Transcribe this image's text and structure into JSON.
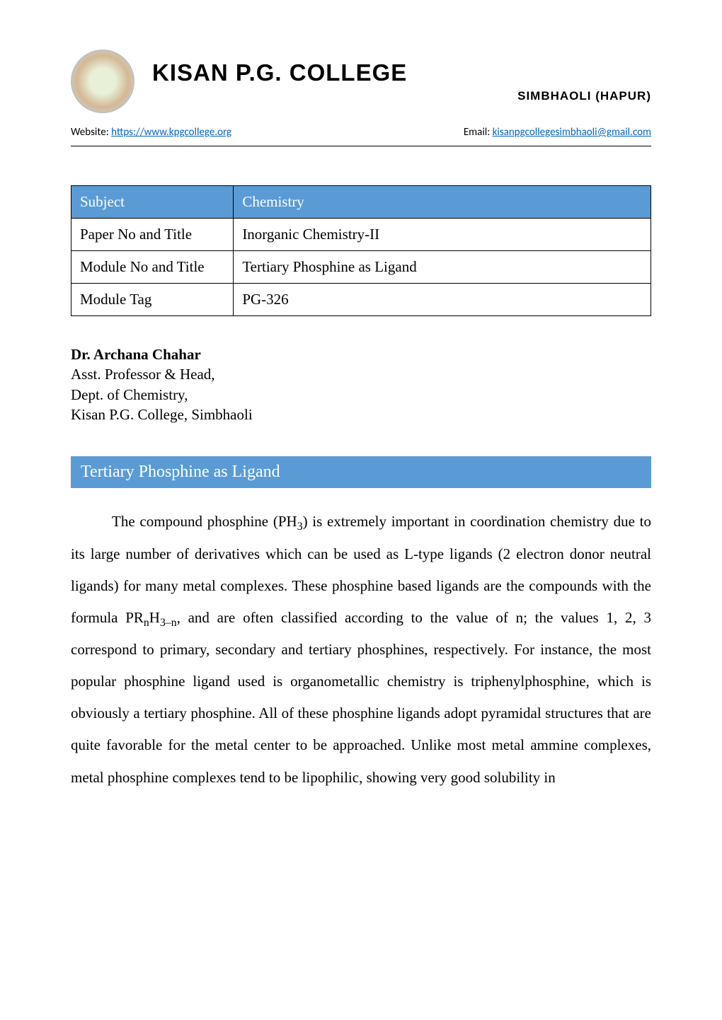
{
  "header": {
    "college_name": "KISAN P.G. COLLEGE",
    "location": "SIMBHAOLI (HAPUR)",
    "website_label": "Website: ",
    "website_url": "https://www.kpgcollege.org",
    "email_label": "Email: ",
    "email_address": "kisanpgcollegesimbhaoli@gmail.com"
  },
  "info_table": {
    "rows": [
      {
        "label": "Subject",
        "value": "Chemistry",
        "header": true
      },
      {
        "label": "Paper No and Title",
        "value": "Inorganic Chemistry-II",
        "header": false
      },
      {
        "label": "Module No and Title",
        "value": "Tertiary Phosphine as Ligand",
        "header": false
      },
      {
        "label": "Module Tag",
        "value": "PG-326",
        "header": false
      }
    ]
  },
  "author": {
    "name": "Dr. Archana Chahar",
    "lines": [
      "Asst. Professor & Head,",
      "Dept. of Chemistry,",
      "Kisan P.G. College, Simbhaoli"
    ]
  },
  "section": {
    "heading": "Tertiary Phosphine as Ligand",
    "para_parts": {
      "p1": "The compound phosphine (PH",
      "p2": ") is extremely important in coordination chemistry due to its large number of derivatives which can be used as L-type ligands (2 electron donor neutral ligands) for many metal complexes. These phosphine based ligands are the compounds with the formula PR",
      "p3": "H",
      "p4": ", and are often classified according to the value of n; the values 1, 2, 3 correspond to primary, secondary and tertiary phosphines, respectively. For instance, the most popular phosphine ligand used is organometallic chemistry is triphenylphosphine, which is obviously a tertiary phosphine. All of these phosphine ligands adopt pyramidal structures that are quite favorable for the metal center to be approached. Unlike most metal ammine complexes, metal phosphine complexes tend to be lipophilic, showing very good solubility in",
      "sub1": "3",
      "sub2": "n",
      "sub3": "3–n"
    }
  },
  "colors": {
    "accent": "#5b9bd5",
    "link": "#0563c1",
    "text": "#000000",
    "bg": "#ffffff"
  }
}
